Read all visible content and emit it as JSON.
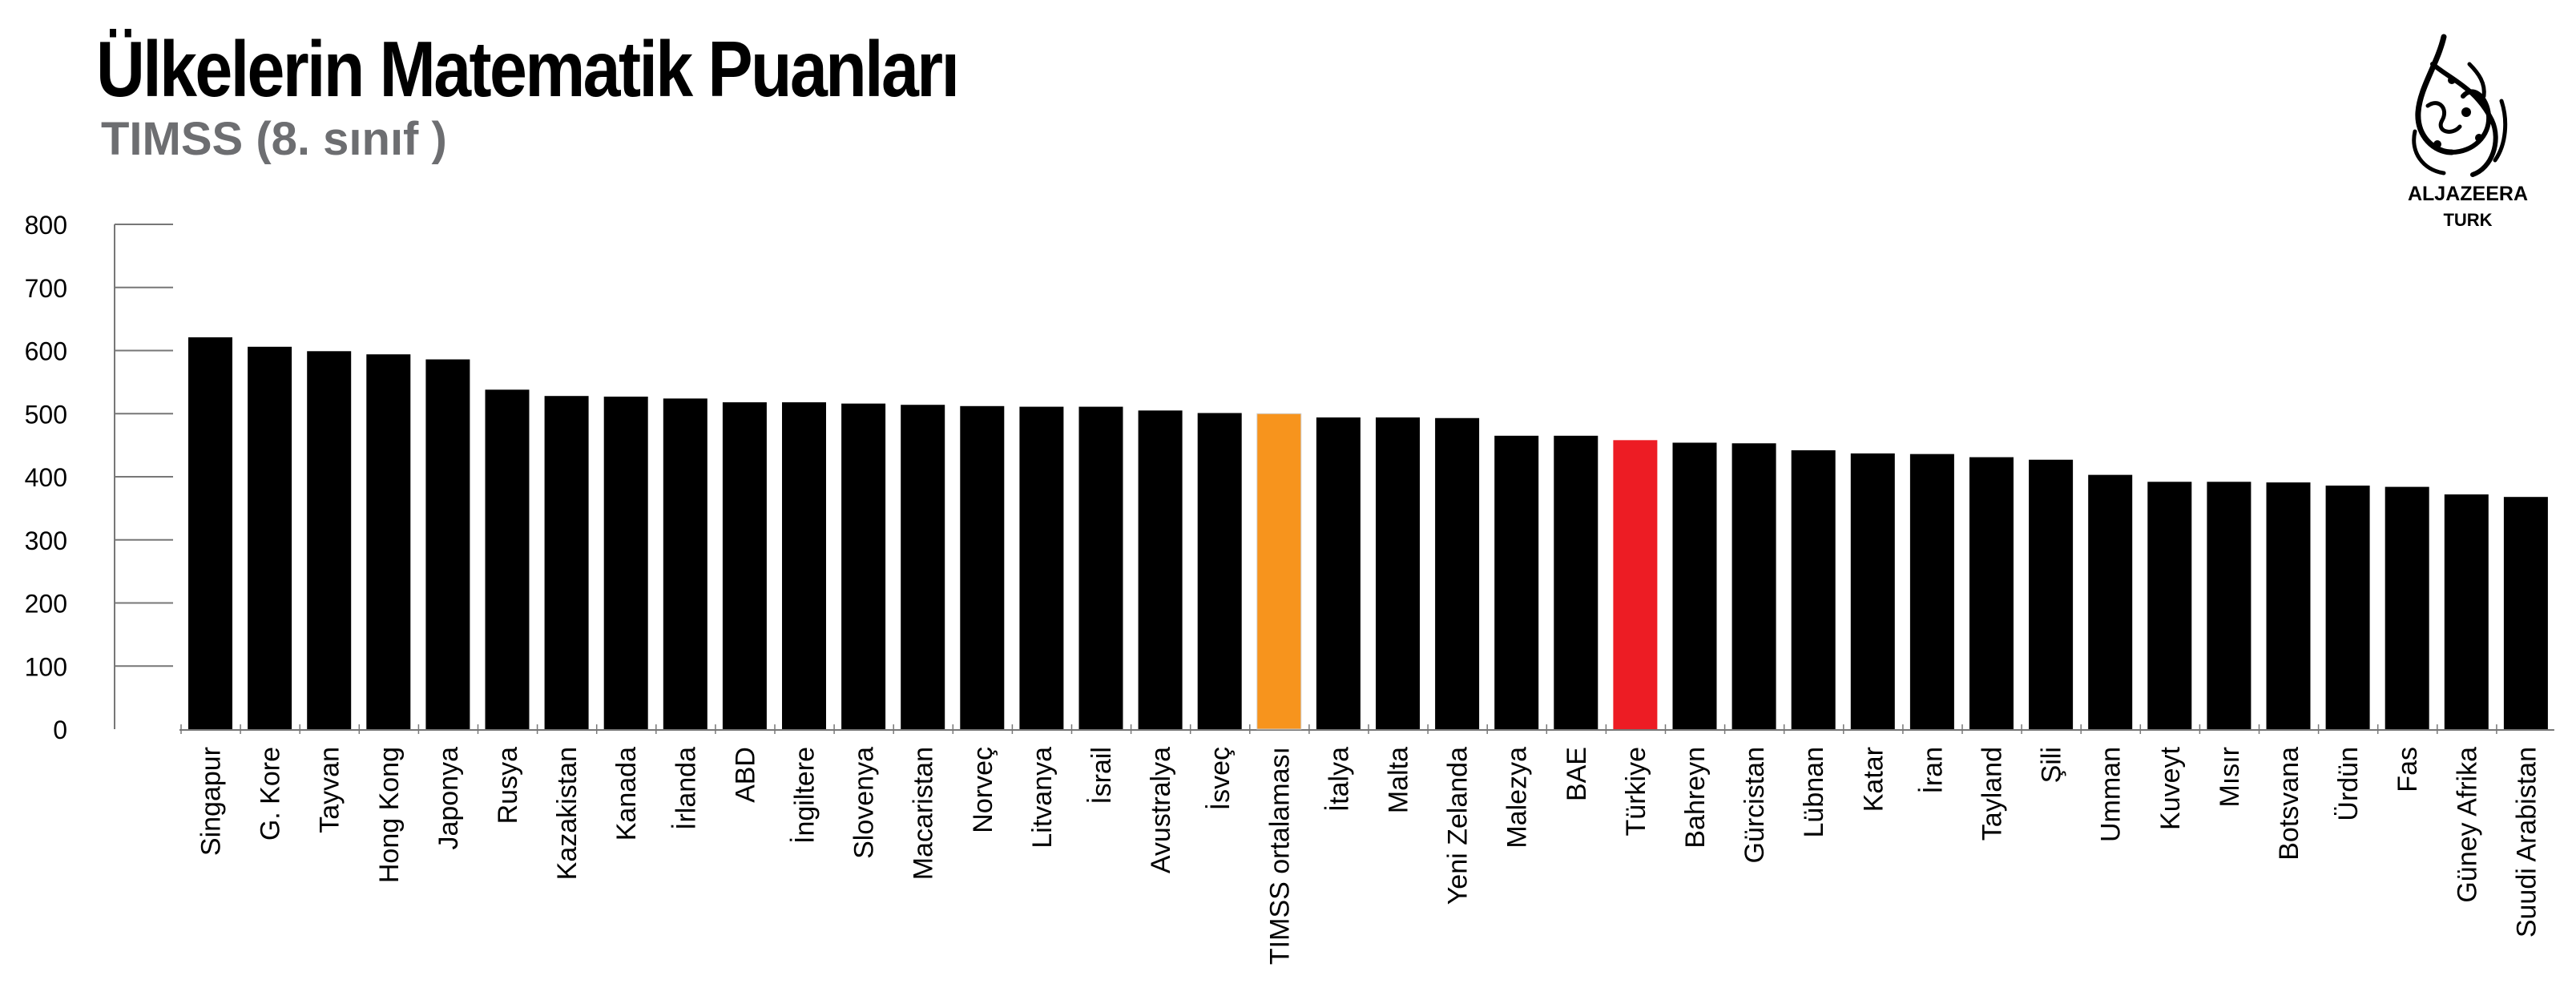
{
  "chart_data": {
    "type": "bar",
    "title": "Ülkelerin Matematik Puanları",
    "subtitle": "TIMSS  (8. sınıf )",
    "ylim": [
      0,
      800
    ],
    "yticks": [
      "0",
      "100",
      "200",
      "300",
      "400",
      "500",
      "600",
      "700",
      "800"
    ],
    "grid": false,
    "categories": [
      "Singapur",
      "G. Kore",
      "Tayvan",
      "Hong Kong",
      "Japonya",
      "Rusya",
      "Kazakistan",
      "Kanada",
      "İrlanda",
      "ABD",
      "İngiltere",
      "Slovenya",
      "Macaristan",
      "Norveç",
      "Litvanya",
      "İsrail",
      "Avustralya",
      "İsveç",
      "TIMSS ortalaması",
      "İtalya",
      "Malta",
      "Yeni Zelanda",
      "Malezya",
      "BAE",
      "Türkiye",
      "Bahreyn",
      "Gürcistan",
      "Lübnan",
      "Katar",
      "İran",
      "Tayland",
      "Şili",
      "Umman",
      "Kuveyt",
      "Mısır",
      "Botsvana",
      "Ürdün",
      "Fas",
      "Güney Afrika",
      "Suudi Arabistan"
    ],
    "values": [
      621,
      606,
      599,
      594,
      586,
      538,
      528,
      527,
      524,
      518,
      518,
      516,
      514,
      512,
      511,
      511,
      505,
      501,
      500,
      494,
      494,
      493,
      465,
      465,
      458,
      454,
      453,
      442,
      437,
      436,
      431,
      427,
      403,
      392,
      392,
      391,
      386,
      384,
      372,
      368
    ],
    "colors": {
      "default": "#000000",
      "TIMSS ortalaması": "#f7941d",
      "Türkiye": "#ed1c24"
    },
    "label_colors": {
      "TIMSS ortalaması": "#f7941d",
      "Türkiye": "#ed1c24"
    }
  },
  "logo": {
    "brand": "ALJAZEERA",
    "sub": "TURK",
    "icon": "aljazeera-calligraphy-logo"
  }
}
